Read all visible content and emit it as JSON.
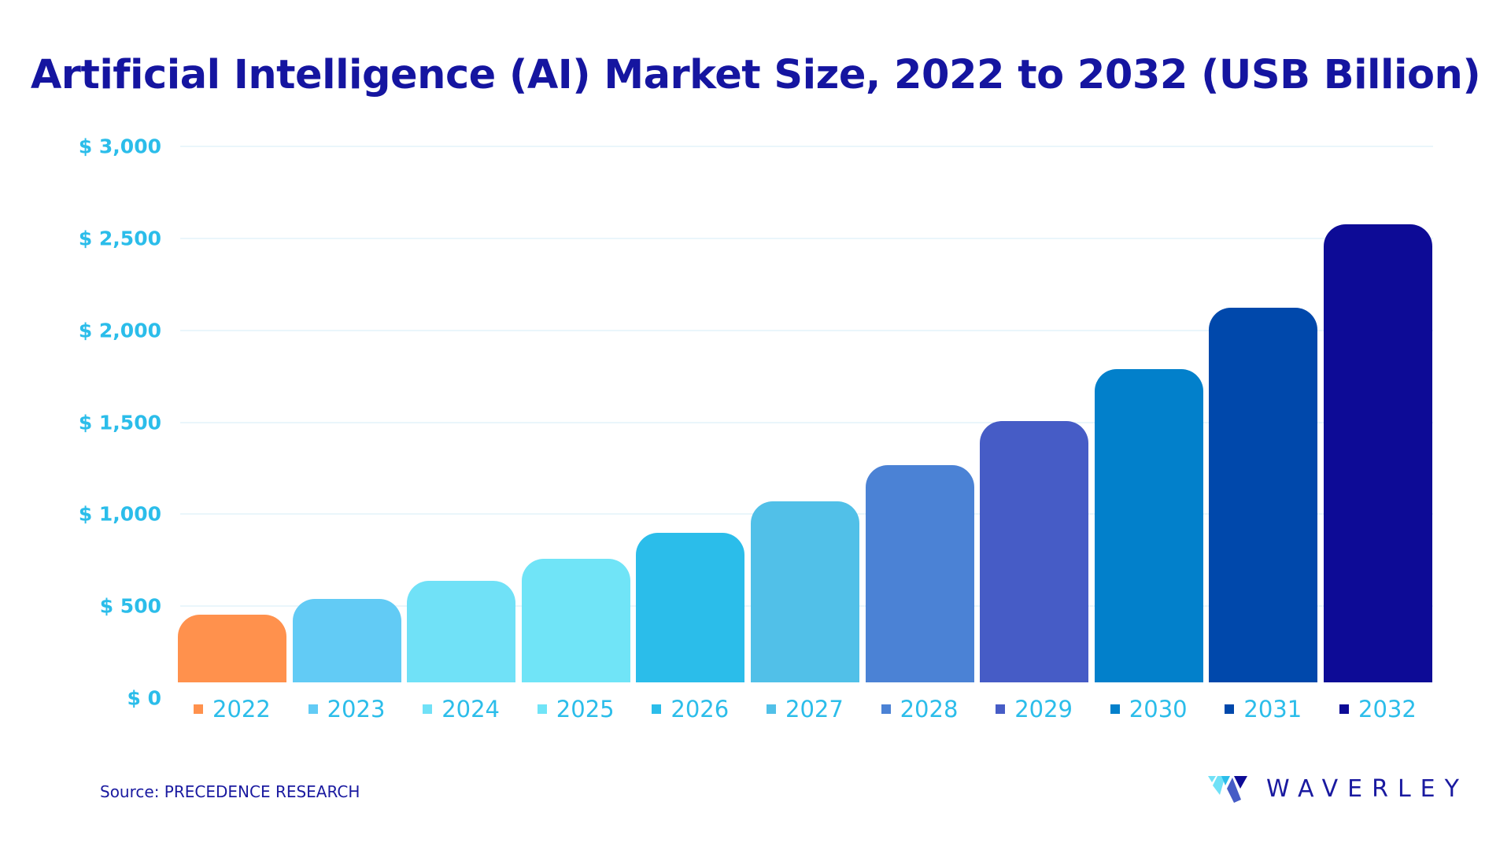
{
  "chart_data": {
    "type": "bar",
    "title": "Artificial Intelligence (AI) Market Size, 2022 to 2032 (USB Billion)",
    "categories": [
      "2022",
      "2023",
      "2024",
      "2025",
      "2026",
      "2027",
      "2028",
      "2029",
      "2030",
      "2031",
      "2032"
    ],
    "values": [
      454.12,
      538.13,
      638.23,
      757.58,
      899.62,
      1067.93,
      1268.44,
      1506.18,
      1788.51,
      2123.87,
      2575.16
    ],
    "colors": [
      "#ff914d",
      "#62cbf5",
      "#70e1f7",
      "#70e4f7",
      "#2bbdea",
      "#51c0e8",
      "#4b82d5",
      "#465cc6",
      "#0280cb",
      "#0048ab",
      "#0d0b96"
    ],
    "yticks": [
      "$ 0",
      "$ 500",
      "$ 1,000",
      "$ 1,500",
      "$ 2,000",
      "$ 2,500",
      "$ 3,000"
    ],
    "ylim": [
      0,
      3000
    ],
    "grid": true,
    "legend": "bottom"
  },
  "source": "Source: PRECEDENCE  RESEARCH",
  "logo": {
    "text": "WAVERLEY"
  }
}
